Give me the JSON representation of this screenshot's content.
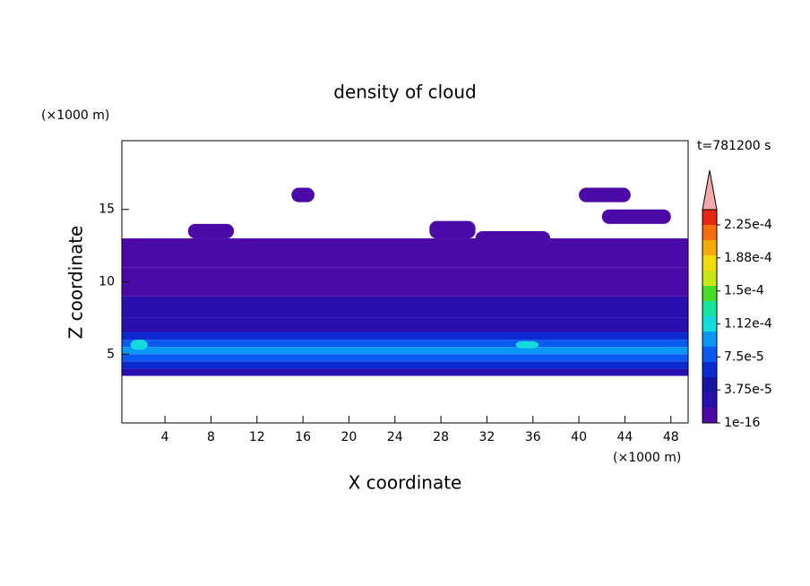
{
  "chart_data": {
    "type": "contour",
    "title": "density of cloud",
    "x_label": "X coordinate",
    "y_label": "Z coordinate",
    "x_unit": "(×1000 m)",
    "y_unit": "(×1000 m)",
    "time_label": "t=781200 s",
    "xlim": [
      0.25,
      49.5
    ],
    "ylim": [
      0.25,
      19.75
    ],
    "xticks": [
      4,
      8,
      12,
      16,
      20,
      24,
      28,
      32,
      36,
      40,
      44,
      48
    ],
    "yticks": [
      5,
      10,
      15
    ],
    "colorbar": {
      "ticks": [
        {
          "value": 1e-16,
          "label": "1e-16"
        },
        {
          "value": 3.75e-05,
          "label": "3.75e-5"
        },
        {
          "value": 7.5e-05,
          "label": "7.5e-5"
        },
        {
          "value": 0.0001125,
          "label": "1.12e-4"
        },
        {
          "value": 0.00015,
          "label": "1.5e-4"
        },
        {
          "value": 0.0001875,
          "label": "1.88e-4"
        },
        {
          "value": 0.000225,
          "label": "2.25e-4"
        }
      ],
      "colors": [
        "#4b0aa8",
        "#2a0fb0",
        "#1414a0",
        "#0a2ad0",
        "#0a5af0",
        "#0a96f5",
        "#14dcdc",
        "#14e6a0",
        "#46dc28",
        "#c8e614",
        "#f0dc0a",
        "#f5aa0a",
        "#f56e0a",
        "#e62814"
      ],
      "extend_color": "#f4a8a8"
    },
    "bands": {
      "z": [
        [
          3.5,
          4
        ],
        [
          4,
          4.5
        ],
        [
          4.5,
          5
        ],
        [
          5,
          5.5
        ],
        [
          5.5,
          6
        ],
        [
          6,
          6.5
        ],
        [
          6.5,
          7.5
        ],
        [
          7.5,
          9
        ],
        [
          9,
          11
        ],
        [
          11,
          13
        ]
      ],
      "values": [
        3e-05,
        6e-05,
        8e-05,
        0.00011,
        8e-05,
        6e-05,
        3e-05,
        2e-05,
        1e-05,
        5e-06
      ]
    },
    "patches": [
      {
        "x": [
          1,
          2.5
        ],
        "z": [
          5.3,
          6
        ],
        "value": 0.00013
      },
      {
        "x": [
          34.5,
          36.5
        ],
        "z": [
          5.4,
          5.9
        ],
        "value": 0.00012
      },
      {
        "x": [
          6,
          10
        ],
        "z": [
          13,
          14
        ],
        "value": 5e-06
      },
      {
        "x": [
          15,
          17
        ],
        "z": [
          15.5,
          16.5
        ],
        "value": 5e-06
      },
      {
        "x": [
          27,
          31
        ],
        "z": [
          13,
          14.2
        ],
        "value": 5e-06
      },
      {
        "x": [
          31,
          37.5
        ],
        "z": [
          12,
          13.5
        ],
        "value": 5e-06
      },
      {
        "x": [
          40,
          44.5
        ],
        "z": [
          15.5,
          16.5
        ],
        "value": 5e-06
      },
      {
        "x": [
          42,
          48
        ],
        "z": [
          14,
          15
        ],
        "value": 5e-06
      }
    ]
  }
}
